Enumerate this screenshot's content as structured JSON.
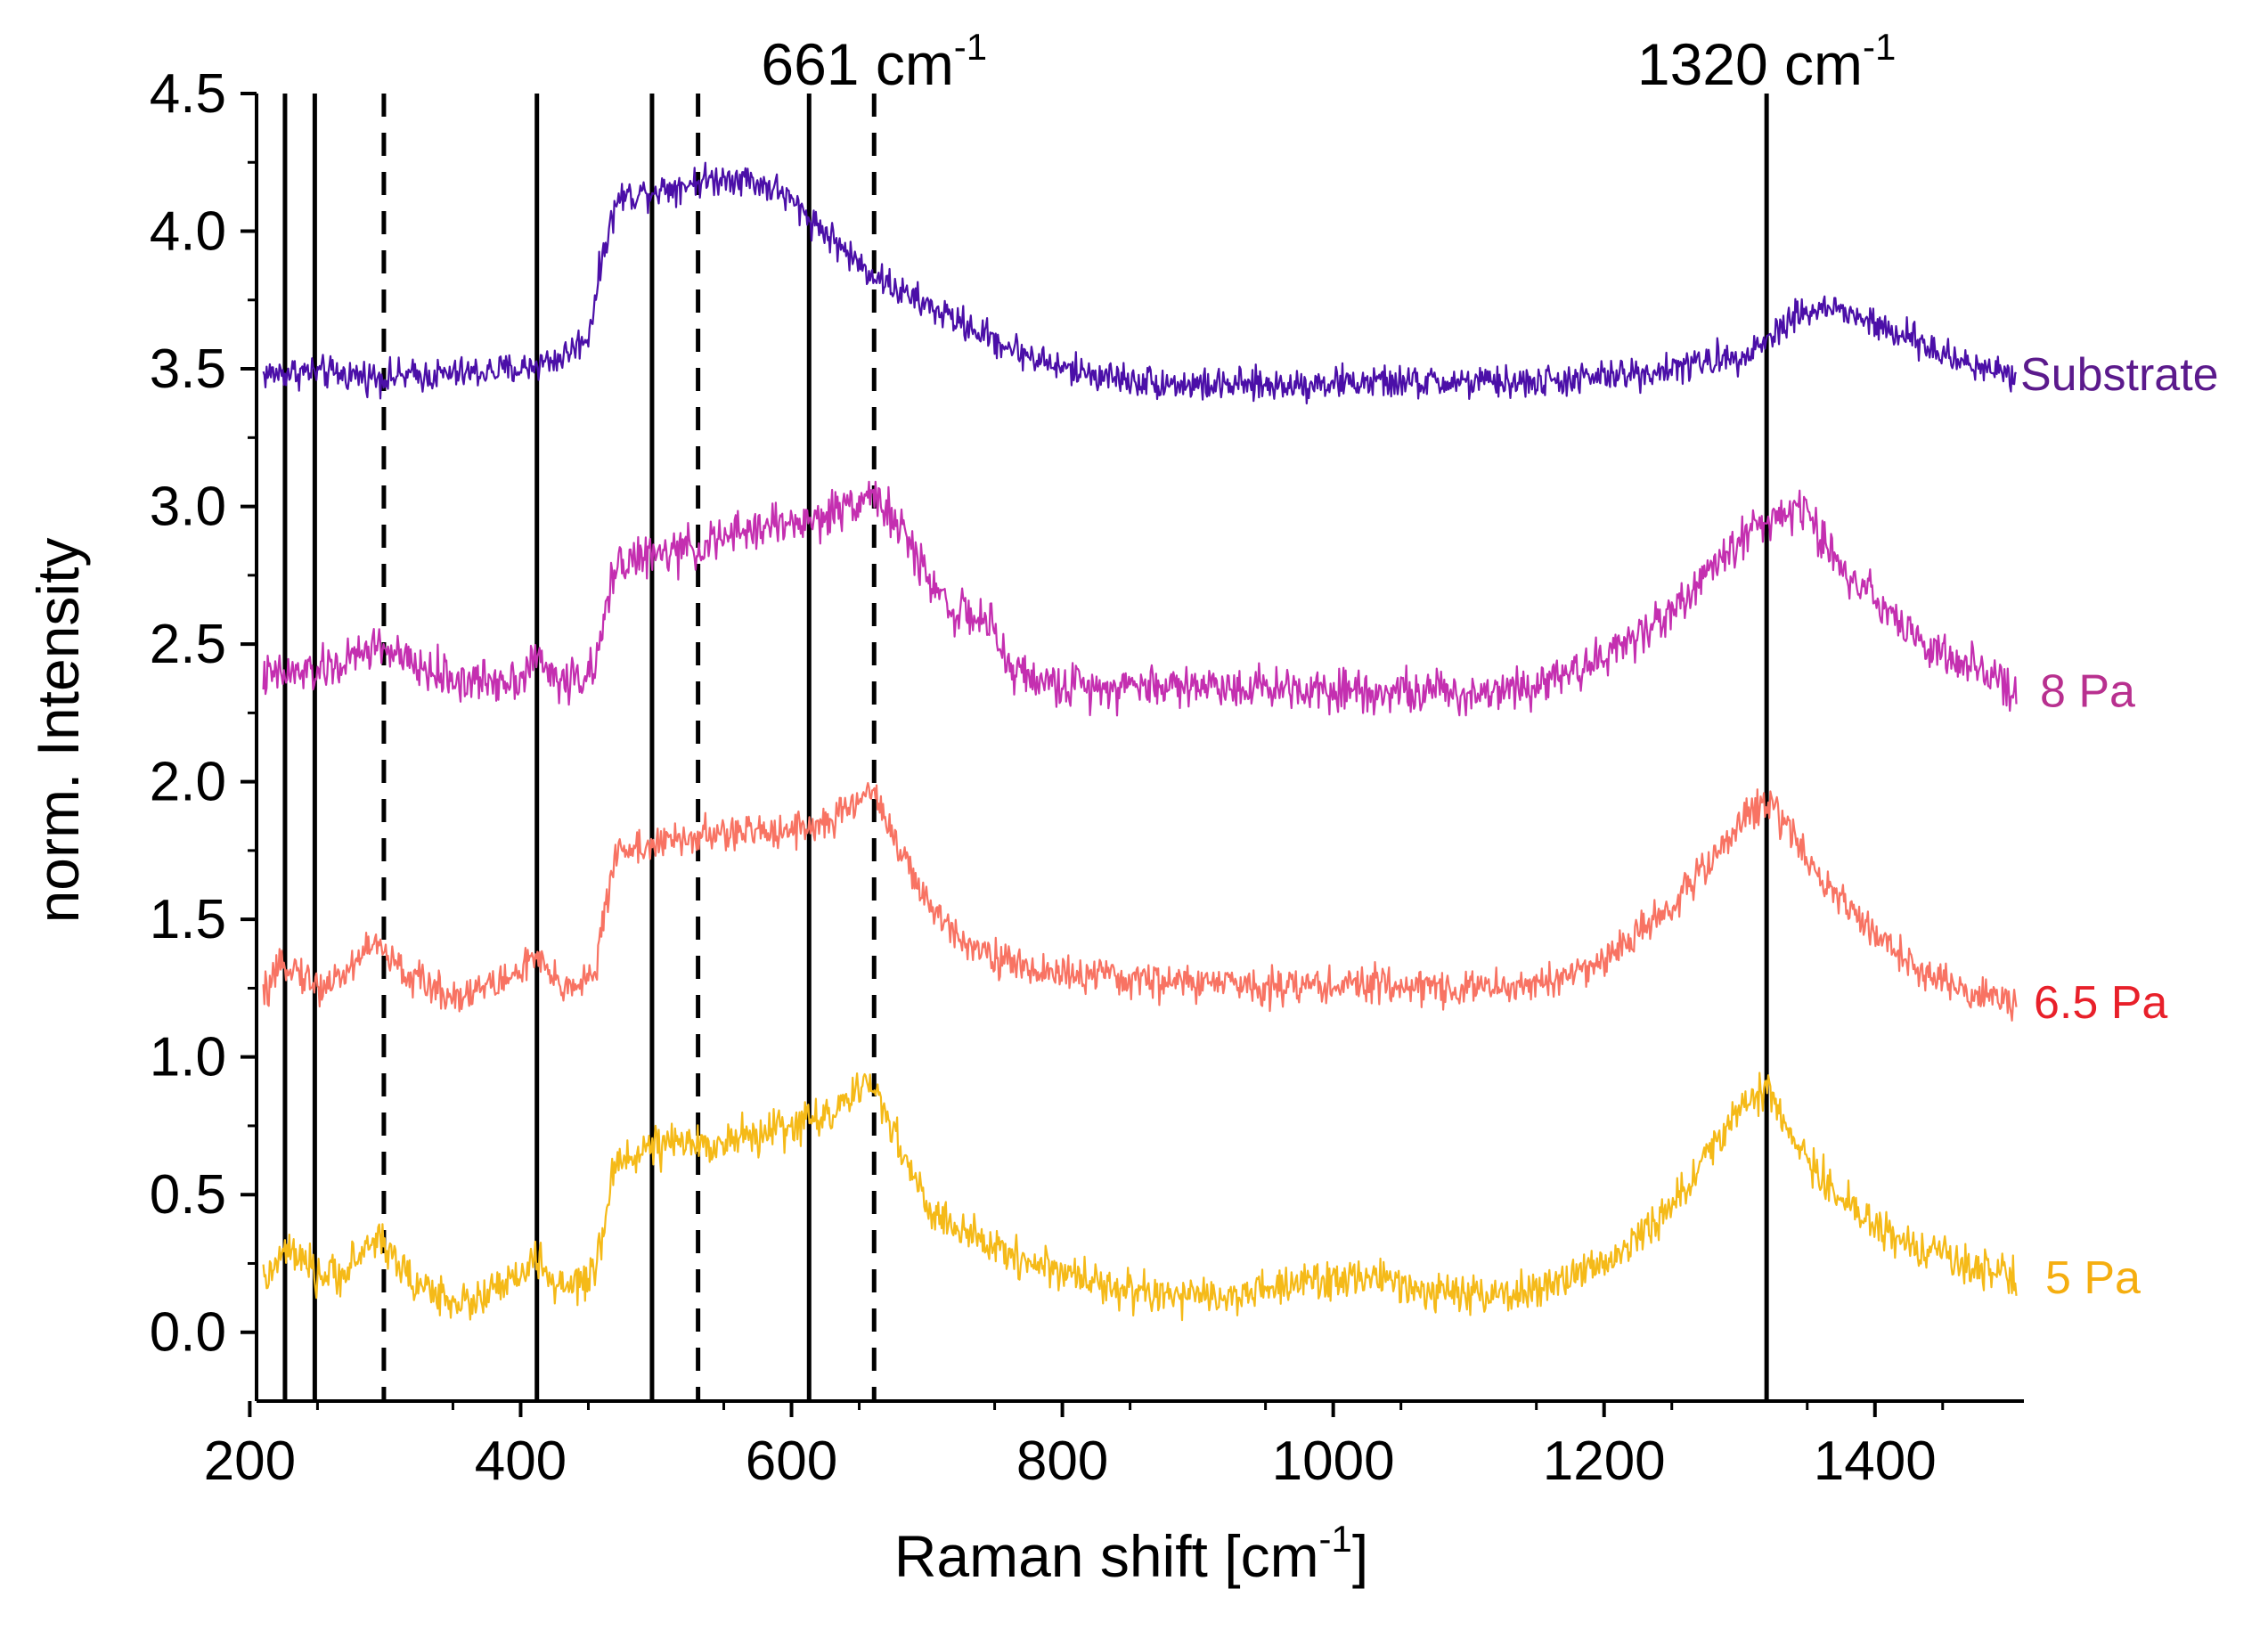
{
  "chart_data": {
    "type": "line",
    "title": "",
    "xlabel": "Raman shift [cm",
    "xlabel_sup": "-1",
    "xlabel_suffix": "]",
    "ylabel": "norm. Intensity",
    "xlim": [
      205,
      1510
    ],
    "ylim": [
      -0.25,
      4.5
    ],
    "x_ticks": [
      200,
      400,
      600,
      800,
      1000,
      1200,
      1400
    ],
    "x_tick_labels": [
      "200",
      "400",
      "600",
      "800",
      "1000",
      "1200",
      "1400"
    ],
    "y_ticks": [
      0.0,
      0.5,
      1.0,
      1.5,
      2.0,
      2.5,
      3.0,
      3.5,
      4.0,
      4.5
    ],
    "y_tick_labels": [
      "0.0",
      "0.5",
      "1.0",
      "1.5",
      "2.0",
      "2.5",
      "3.0",
      "3.5",
      "4.0",
      "4.5"
    ],
    "grid": false,
    "reference_lines": [
      {
        "x": 226,
        "style": "solid"
      },
      {
        "x": 248,
        "style": "solid"
      },
      {
        "x": 299,
        "style": "dashed"
      },
      {
        "x": 412,
        "style": "solid"
      },
      {
        "x": 497,
        "style": "solid"
      },
      {
        "x": 531,
        "style": "dashed"
      },
      {
        "x": 613,
        "style": "solid"
      },
      {
        "x": 661,
        "style": "dashed"
      },
      {
        "x": 1320,
        "style": "solid"
      }
    ],
    "annotations": [
      {
        "text": "661 cm",
        "sup": "-1",
        "x": 661
      },
      {
        "text": "1320 cm",
        "sup": "-1",
        "x": 1320
      }
    ],
    "series": [
      {
        "name": "Substrate",
        "color": "#4b0fa8",
        "label_color": "#5b1a8c",
        "noise": 0.045,
        "x": [
          210,
          240,
          300,
          350,
          400,
          430,
          450,
          462,
          472,
          500,
          530,
          560,
          590,
          620,
          650,
          680,
          720,
          760,
          800,
          850,
          900,
          950,
          1000,
          1050,
          1100,
          1150,
          1200,
          1250,
          1300,
          1320,
          1340,
          1370,
          1400,
          1430,
          1460,
          1505
        ],
        "values": [
          3.48,
          3.49,
          3.47,
          3.48,
          3.5,
          3.54,
          3.62,
          3.95,
          4.12,
          4.15,
          4.18,
          4.2,
          4.15,
          4.02,
          3.88,
          3.78,
          3.68,
          3.58,
          3.5,
          3.46,
          3.44,
          3.44,
          3.45,
          3.45,
          3.45,
          3.45,
          3.47,
          3.5,
          3.55,
          3.6,
          3.7,
          3.72,
          3.66,
          3.6,
          3.53,
          3.48
        ]
      },
      {
        "name": "8 Pa",
        "color": "#c42fb0",
        "label_color": "#b8308f",
        "noise": 0.06,
        "x": [
          210,
          250,
          270,
          295,
          320,
          360,
          400,
          410,
          430,
          455,
          470,
          500,
          530,
          580,
          620,
          645,
          660,
          680,
          700,
          720,
          745,
          760,
          790,
          850,
          900,
          1000,
          1050,
          1100,
          1150,
          1200,
          1250,
          1290,
          1310,
          1330,
          1350,
          1370,
          1400,
          1430,
          1460,
          1505
        ],
        "values": [
          2.38,
          2.4,
          2.43,
          2.5,
          2.42,
          2.36,
          2.38,
          2.45,
          2.36,
          2.4,
          2.8,
          2.82,
          2.85,
          2.93,
          2.95,
          3.02,
          3.05,
          2.92,
          2.75,
          2.62,
          2.58,
          2.42,
          2.35,
          2.35,
          2.35,
          2.34,
          2.33,
          2.32,
          2.36,
          2.45,
          2.62,
          2.82,
          2.93,
          2.97,
          2.98,
          2.8,
          2.68,
          2.52,
          2.43,
          2.33
        ]
      },
      {
        "name": "6.5 Pa",
        "color": "#f87363",
        "label_color": "#e8202a",
        "noise": 0.05,
        "x": [
          210,
          228,
          250,
          270,
          290,
          315,
          350,
          390,
          410,
          430,
          455,
          470,
          500,
          530,
          580,
          630,
          660,
          680,
          700,
          730,
          770,
          850,
          950,
          1050,
          1100,
          1150,
          1200,
          1250,
          1290,
          1310,
          1320,
          1335,
          1360,
          1400,
          1430,
          1460,
          1505
        ],
        "values": [
          1.22,
          1.35,
          1.25,
          1.3,
          1.42,
          1.3,
          1.22,
          1.28,
          1.36,
          1.25,
          1.3,
          1.75,
          1.77,
          1.8,
          1.82,
          1.85,
          1.98,
          1.75,
          1.55,
          1.42,
          1.32,
          1.28,
          1.26,
          1.26,
          1.25,
          1.26,
          1.35,
          1.55,
          1.78,
          1.9,
          1.93,
          1.85,
          1.65,
          1.45,
          1.32,
          1.25,
          1.2
        ]
      },
      {
        "name": "5 Pa",
        "color": "#f5ba18",
        "label_color": "#f5ae10",
        "noise": 0.055,
        "x": [
          210,
          228,
          250,
          270,
          295,
          320,
          360,
          400,
          410,
          430,
          455,
          470,
          500,
          530,
          580,
          630,
          660,
          680,
          700,
          730,
          780,
          850,
          900,
          950,
          1000,
          1050,
          1100,
          1150,
          1200,
          1250,
          1290,
          1310,
          1320,
          1340,
          1370,
          1400,
          1430,
          1460,
          1505
        ],
        "values": [
          0.18,
          0.3,
          0.2,
          0.22,
          0.35,
          0.18,
          0.1,
          0.2,
          0.27,
          0.15,
          0.2,
          0.62,
          0.68,
          0.68,
          0.72,
          0.8,
          0.9,
          0.68,
          0.45,
          0.35,
          0.25,
          0.15,
          0.12,
          0.15,
          0.2,
          0.18,
          0.12,
          0.15,
          0.25,
          0.45,
          0.75,
          0.85,
          0.88,
          0.7,
          0.5,
          0.4,
          0.3,
          0.25,
          0.2
        ]
      }
    ]
  }
}
